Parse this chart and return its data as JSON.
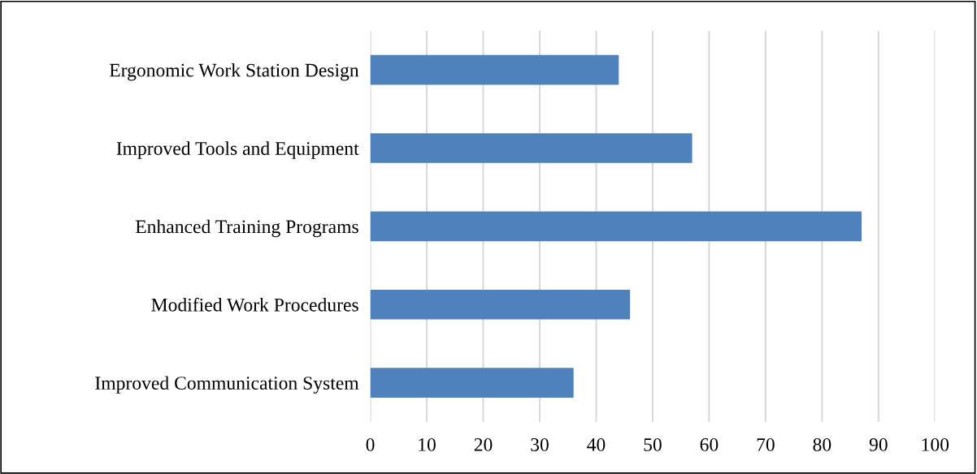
{
  "chart_data": {
    "type": "bar",
    "orientation": "horizontal",
    "categories": [
      "Ergonomic Work Station Design",
      "Improved Tools and Equipment",
      "Enhanced Training Programs",
      "Modified Work Procedures",
      "Improved Communication System"
    ],
    "values": [
      44,
      57,
      87,
      46,
      36
    ],
    "color": "#4f81bd",
    "xlim": [
      0,
      100
    ],
    "xticks": [
      0,
      10,
      20,
      30,
      40,
      50,
      60,
      70,
      80,
      90,
      100
    ],
    "grid": "x",
    "legend": false
  }
}
